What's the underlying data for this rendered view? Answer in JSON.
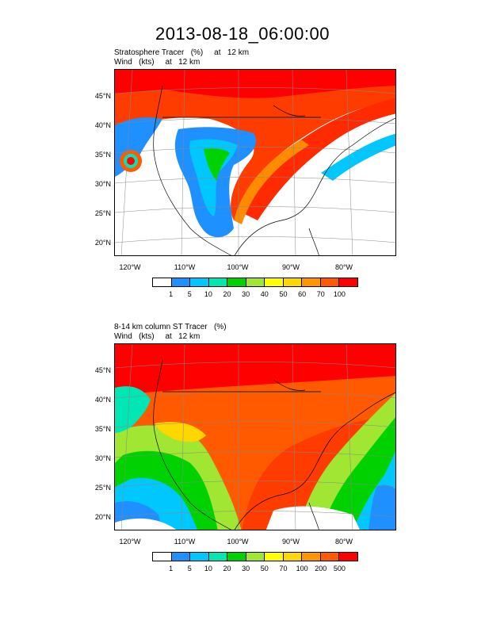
{
  "title": "2013-08-18_06:00:00",
  "panel1": {
    "subtitle_line1": "Stratosphere Tracer   (%)     at   12 km",
    "subtitle_line2": "Wind   (kts)     at   12 km",
    "lat_labels": [
      "45°N",
      "40°N",
      "35°N",
      "30°N",
      "25°N",
      "20°N"
    ],
    "lon_labels": [
      "120°W",
      "110°W",
      "100°W",
      "90°W",
      "80°W"
    ],
    "colorbar_labels": [
      "1",
      "5",
      "10",
      "20",
      "30",
      "40",
      "50",
      "60",
      "70",
      "100"
    ],
    "colorbar_colors": [
      "#ffffff",
      "#1e90ff",
      "#00c8ff",
      "#00e6b4",
      "#00d200",
      "#a0e632",
      "#ffff00",
      "#ffd700",
      "#ff9600",
      "#ff5a00",
      "#ff0000"
    ]
  },
  "panel2": {
    "subtitle_line1": "8-14 km column ST Tracer   (%)",
    "subtitle_line2": "Wind   (kts)     at   12 km",
    "lat_labels": [
      "45°N",
      "40°N",
      "35°N",
      "30°N",
      "25°N",
      "20°N"
    ],
    "lon_labels": [
      "120°W",
      "110°W",
      "100°W",
      "90°W",
      "80°W"
    ],
    "colorbar_labels": [
      "1",
      "5",
      "10",
      "20",
      "30",
      "50",
      "70",
      "100",
      "200",
      "500"
    ],
    "colorbar_colors": [
      "#ffffff",
      "#1e90ff",
      "#00c8ff",
      "#00e6b4",
      "#00d200",
      "#a0e632",
      "#ffff00",
      "#ffd700",
      "#ff9600",
      "#ff5a00",
      "#ff0000"
    ]
  }
}
